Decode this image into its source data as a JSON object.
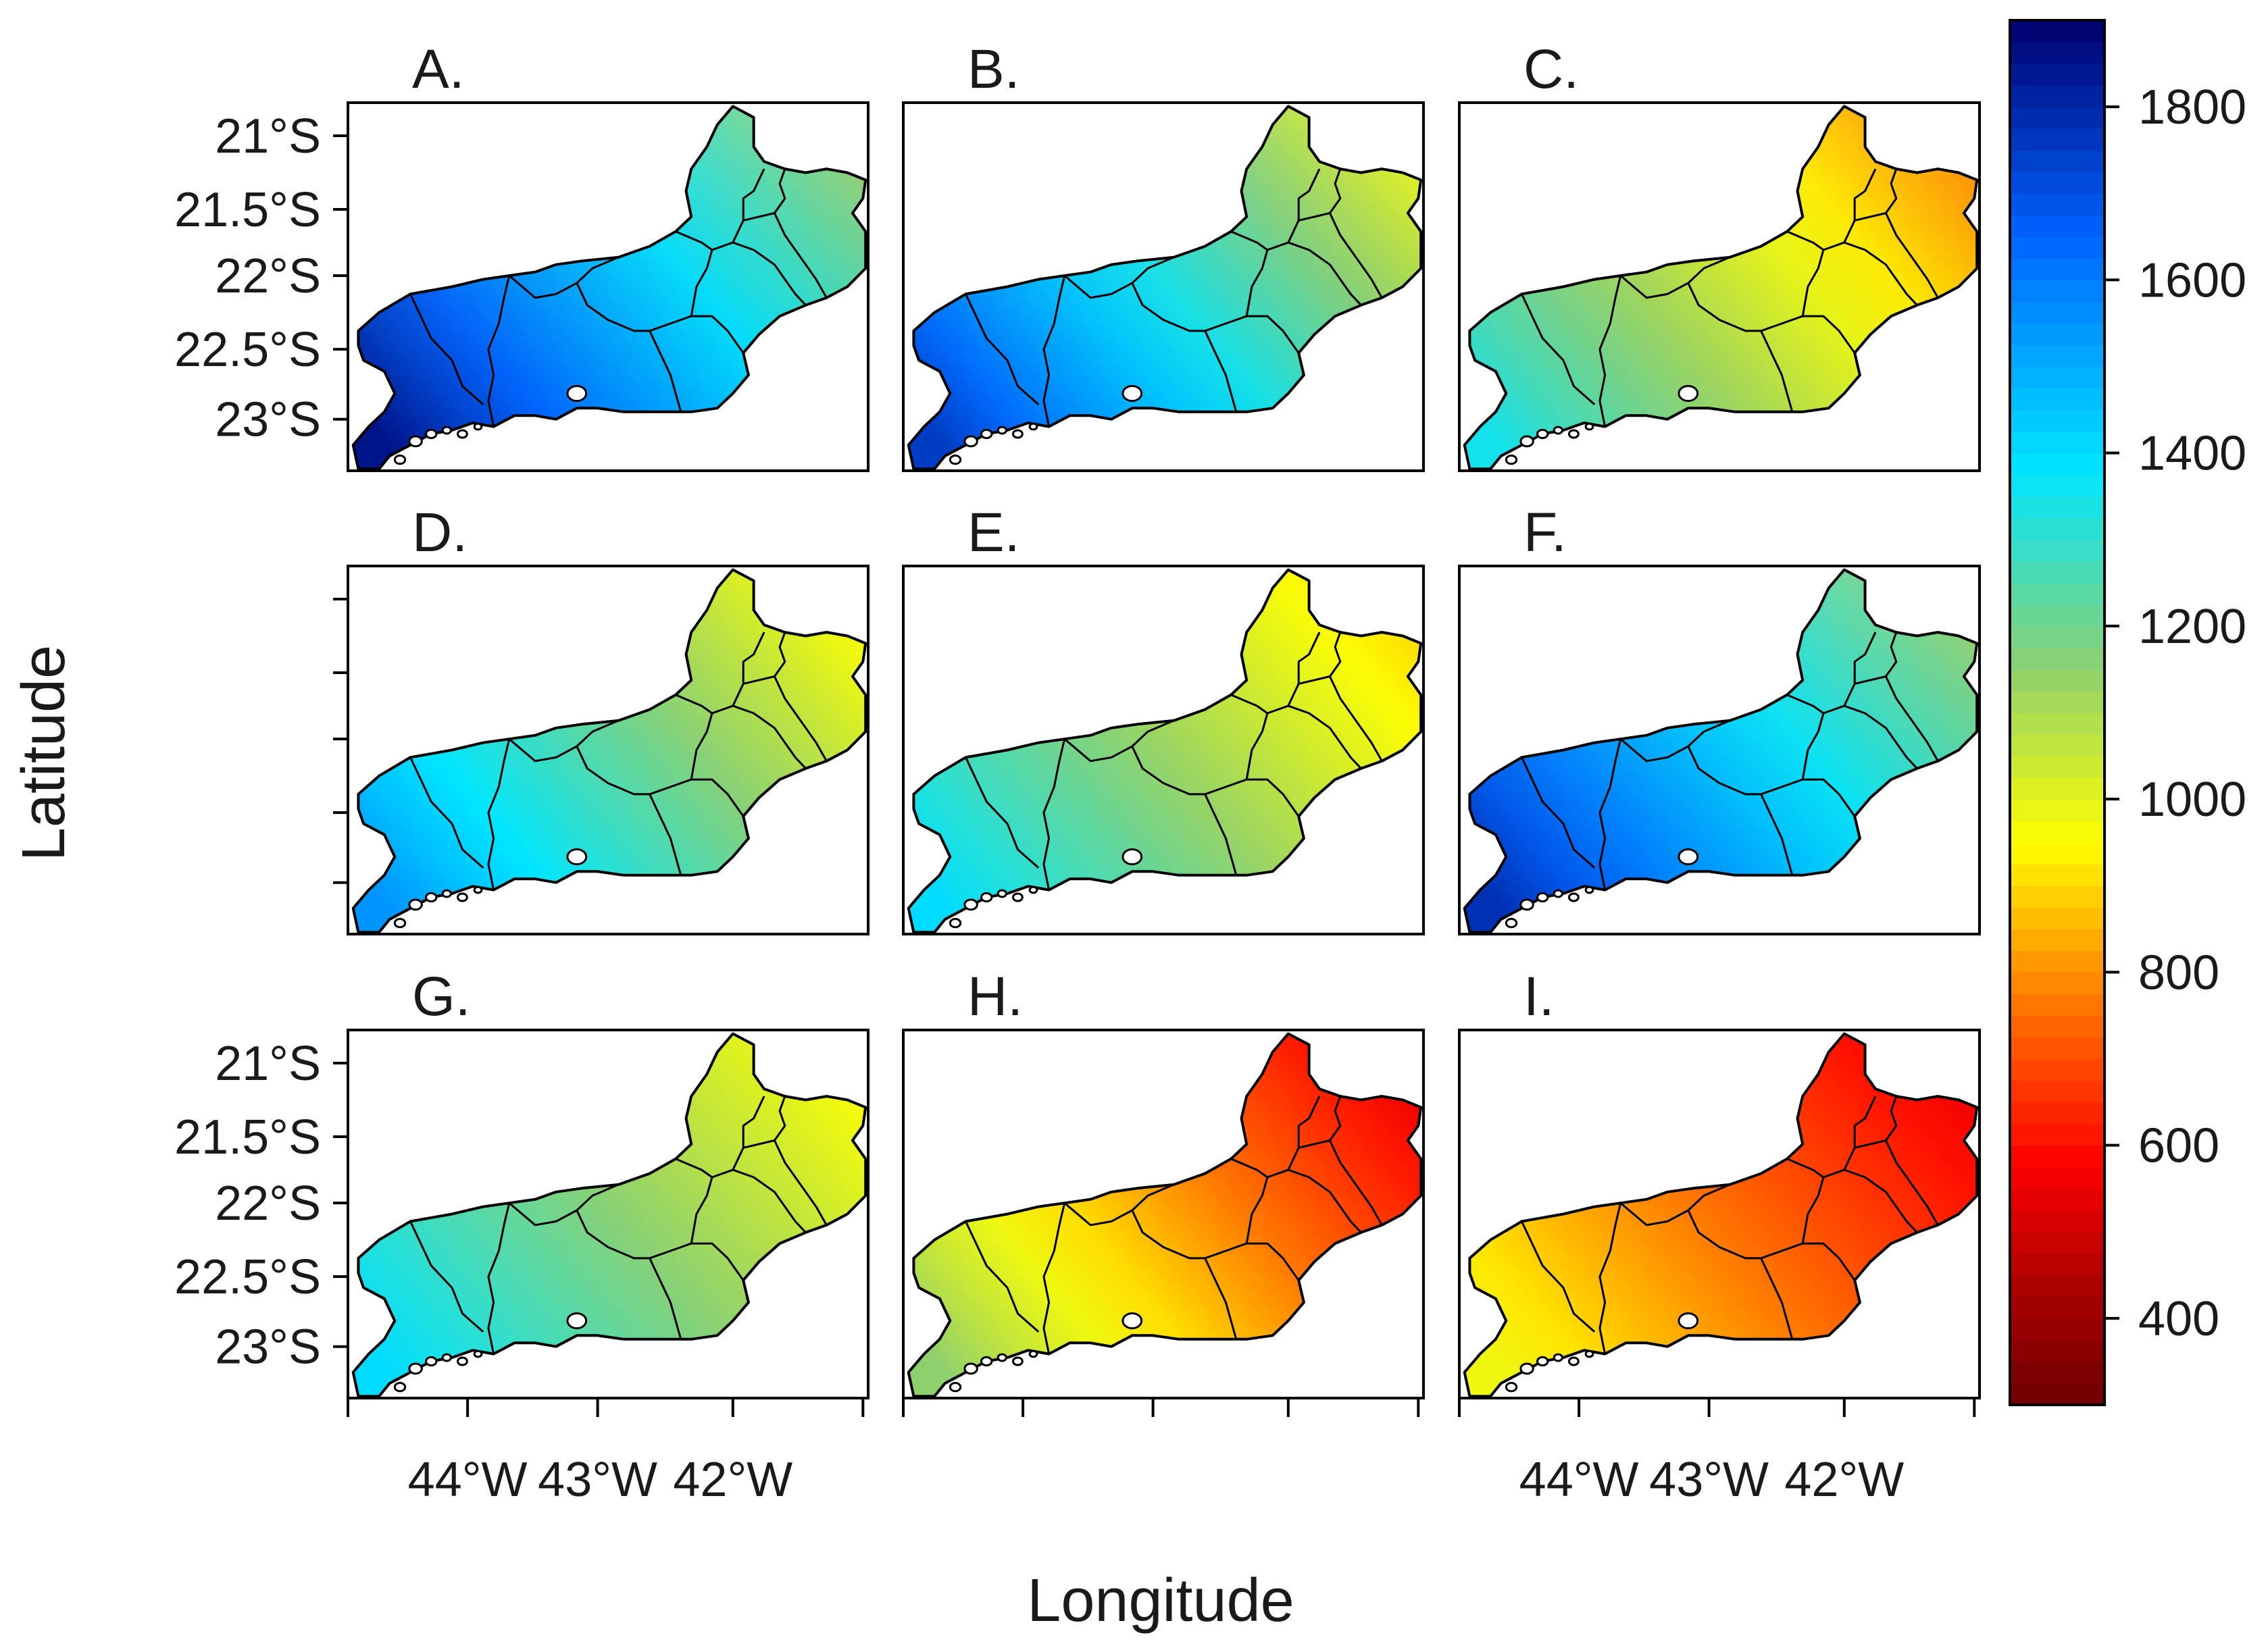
{
  "figure": {
    "xlabel": "Longitude",
    "ylabel": "Latitude"
  },
  "panels": [
    {
      "label": "A.",
      "field": {
        "west": 1850,
        "east": 1150,
        "south_bias": 0,
        "north_bias": -80
      }
    },
    {
      "label": "B.",
      "field": {
        "west": 1750,
        "east": 1000,
        "south_bias": -120,
        "north_bias": -60
      }
    },
    {
      "label": "C.",
      "field": {
        "west": 1350,
        "east": 800,
        "south_bias": -160,
        "north_bias": -40
      }
    },
    {
      "label": "D.",
      "field": {
        "west": 1550,
        "east": 960,
        "south_bias": -60,
        "north_bias": 0
      }
    },
    {
      "label": "E.",
      "field": {
        "west": 1400,
        "east": 900,
        "south_bias": -60,
        "north_bias": 0
      }
    },
    {
      "label": "F.",
      "field": {
        "west": 1780,
        "east": 1150,
        "south_bias": -80,
        "north_bias": -60
      }
    },
    {
      "label": "G.",
      "field": {
        "west": 1400,
        "east": 960,
        "south_bias": -40,
        "north_bias": 0
      }
    },
    {
      "label": "H.",
      "field": {
        "west": 1150,
        "east": 560,
        "south_bias": -120,
        "north_bias": 0
      }
    },
    {
      "label": "I.",
      "field": {
        "west": 980,
        "east": 560,
        "south_bias": -100,
        "north_bias": 0
      }
    }
  ],
  "axes": {
    "lat_ticks": [
      "21°S",
      "21.5°S",
      "22°S",
      "22.5°S",
      "23°S"
    ],
    "lon_ticks": [
      "44°W",
      "43°W",
      "42°W"
    ]
  },
  "colorbar": {
    "min": 300,
    "max": 1900,
    "ticks": [
      "400",
      "600",
      "800",
      "1000",
      "1200",
      "1400",
      "1600",
      "1800"
    ],
    "tick_values": [
      400,
      600,
      800,
      1000,
      1200,
      1400,
      1600,
      1800
    ],
    "colors": [
      "#6e0000",
      "#b00000",
      "#ff0000",
      "#ff8000",
      "#ffff00",
      "#8fd06e",
      "#00e6ff",
      "#0064ff",
      "#00006e"
    ],
    "color_stops": [
      300,
      450,
      580,
      780,
      950,
      1150,
      1380,
      1650,
      1900
    ]
  },
  "colors": {
    "outline": "#000000",
    "frame": "#000000"
  }
}
